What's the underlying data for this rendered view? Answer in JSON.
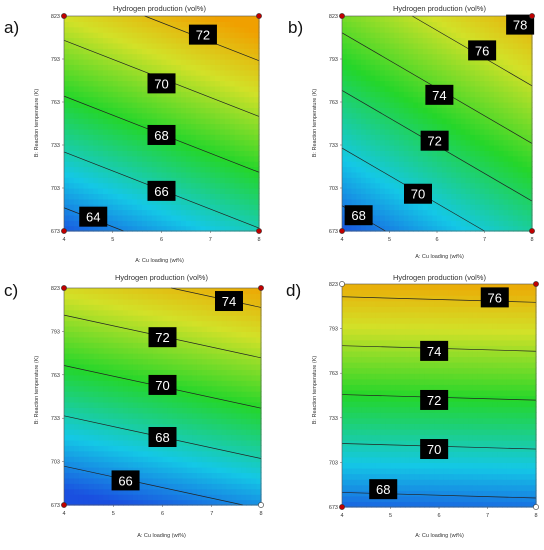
{
  "chart_data": [
    {
      "type": "contour",
      "panel_label": "a)",
      "title": "Hydrogen production (vol%)",
      "xlabel": "A: Cu loading (wt%)",
      "ylabel": "B: Reaction temperature (K)",
      "xlim": [
        4,
        8
      ],
      "ylim": [
        673,
        823
      ],
      "xticks": [
        "4",
        "5",
        "6",
        "7",
        "8"
      ],
      "yticks": [
        "673",
        "703",
        "733",
        "763",
        "793",
        "823"
      ],
      "zrange": [
        63,
        73
      ],
      "contour_labels": [
        {
          "text": "64",
          "x": 4.6,
          "y": 683
        },
        {
          "text": "66",
          "x": 6.0,
          "y": 701
        },
        {
          "text": "68",
          "x": 6.0,
          "y": 740
        },
        {
          "text": "70",
          "x": 6.0,
          "y": 776
        },
        {
          "text": "72",
          "x": 6.85,
          "y": 810
        }
      ],
      "design_points": [
        {
          "x": 4,
          "y": 673,
          "fill": "#c00000"
        },
        {
          "x": 8,
          "y": 673,
          "fill": "#c00000"
        },
        {
          "x": 4,
          "y": 823,
          "fill": "#c00000"
        },
        {
          "x": 8,
          "y": 823,
          "fill": "#c00000"
        }
      ]
    },
    {
      "type": "contour",
      "panel_label": "b)",
      "title": "Hydrogen production (vol%)",
      "xlabel": "A: Cu loading (wt%)",
      "ylabel": "B: Reaction temperature (K)",
      "xlim": [
        4,
        8
      ],
      "ylim": [
        673,
        823
      ],
      "xticks": [
        "4",
        "5",
        "6",
        "7",
        "8"
      ],
      "yticks": [
        "673",
        "703",
        "733",
        "763",
        "793",
        "823"
      ],
      "zrange": [
        67,
        79
      ],
      "contour_labels": [
        {
          "text": "68",
          "x": 4.35,
          "y": 684
        },
        {
          "text": "70",
          "x": 5.6,
          "y": 699
        },
        {
          "text": "72",
          "x": 5.95,
          "y": 736
        },
        {
          "text": "74",
          "x": 6.05,
          "y": 768
        },
        {
          "text": "76",
          "x": 6.95,
          "y": 799
        },
        {
          "text": "78",
          "x": 7.75,
          "y": 817
        }
      ],
      "design_points": [
        {
          "x": 4,
          "y": 673,
          "fill": "#c00000"
        },
        {
          "x": 8,
          "y": 673,
          "fill": "#c00000"
        },
        {
          "x": 4,
          "y": 823,
          "fill": "#c00000"
        },
        {
          "x": 8,
          "y": 823,
          "fill": "#c00000"
        }
      ]
    },
    {
      "type": "contour",
      "panel_label": "c)",
      "title": "Hydrogen production (vol%)",
      "xlabel": "A: Cu loading (wt%)",
      "ylabel": "B: Reaction temperature (K)",
      "xlim": [
        4,
        8
      ],
      "ylim": [
        673,
        823
      ],
      "xticks": [
        "4",
        "5",
        "6",
        "7",
        "8"
      ],
      "yticks": [
        "673",
        "703",
        "733",
        "763",
        "793",
        "823"
      ],
      "zrange": [
        65,
        75
      ],
      "contour_labels": [
        {
          "text": "66",
          "x": 5.25,
          "y": 690
        },
        {
          "text": "68",
          "x": 6.0,
          "y": 720
        },
        {
          "text": "70",
          "x": 6.0,
          "y": 756
        },
        {
          "text": "72",
          "x": 6.0,
          "y": 789
        },
        {
          "text": "74",
          "x": 7.35,
          "y": 814
        }
      ],
      "design_points": [
        {
          "x": 4,
          "y": 673,
          "fill": "#c00000"
        },
        {
          "x": 8,
          "y": 673,
          "fill": "#ffffff"
        },
        {
          "x": 4,
          "y": 823,
          "fill": "#c00000"
        },
        {
          "x": 8,
          "y": 823,
          "fill": "#c00000"
        }
      ]
    },
    {
      "type": "contour",
      "panel_label": "d)",
      "title": "Hydrogen production (vol%)",
      "xlabel": "A: Cu loading (wt%)",
      "ylabel": "B: Reaction temperature (K)",
      "xlim": [
        4,
        8
      ],
      "ylim": [
        673,
        823
      ],
      "xticks": [
        "4",
        "5",
        "6",
        "7",
        "8"
      ],
      "yticks": [
        "673",
        "703",
        "733",
        "763",
        "793",
        "823"
      ],
      "zrange": [
        67,
        77
      ],
      "contour_labels": [
        {
          "text": "68",
          "x": 4.85,
          "y": 685
        },
        {
          "text": "70",
          "x": 5.9,
          "y": 712
        },
        {
          "text": "72",
          "x": 5.9,
          "y": 745
        },
        {
          "text": "74",
          "x": 5.9,
          "y": 778
        },
        {
          "text": "76",
          "x": 7.15,
          "y": 814
        }
      ],
      "design_points": [
        {
          "x": 4,
          "y": 673,
          "fill": "#c00000"
        },
        {
          "x": 8,
          "y": 673,
          "fill": "#ffffff"
        },
        {
          "x": 4,
          "y": 823,
          "fill": "#ffffff"
        },
        {
          "x": 8,
          "y": 823,
          "fill": "#c00000"
        }
      ]
    }
  ],
  "colors": {
    "colormap_low": "#1a4fe0",
    "colormap_mid": "#24d62a",
    "colormap_high": "#f0a000",
    "label_box": "#000000",
    "label_text": "#ffffff",
    "contour_line": "#222222",
    "axis_text": "#333333"
  }
}
